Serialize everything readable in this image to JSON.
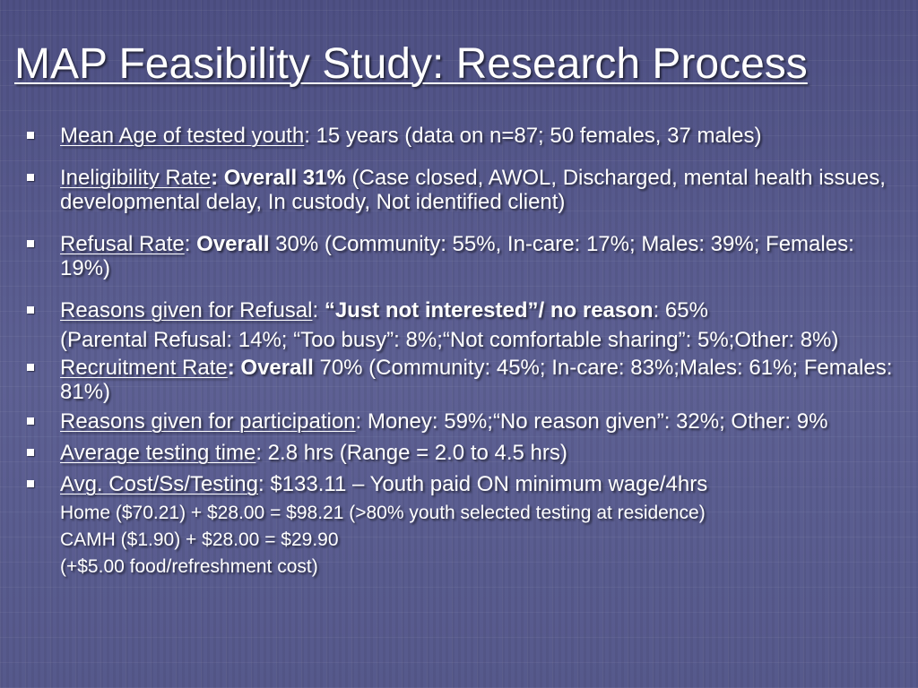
{
  "title": "MAP Feasibility Study: Research Process",
  "items": [
    {
      "label": "Mean Age of tested youth",
      "text": ": 15 years (data on n=87; 50 females, 37 males)"
    },
    {
      "label": "Ineligibility Rate",
      "bold": ": Overall 31%",
      "text": " (Case closed, AWOL, Discharged, mental health issues, developmental delay, In custody, Not identified client)"
    },
    {
      "label": "Refusal Rate",
      "sep": ": ",
      "bold": "Overall",
      "text": " 30% (Community: 55%, In-care: 17%; Males: 39%; Females: 19%)"
    },
    {
      "label": "Reasons given for Refusal",
      "sep": ": ",
      "bold": "“Just not interested”/ no reason",
      "text": ": 65%",
      "sub": "(Parental Refusal: 14%; “Too busy”: 8%;“Not comfortable sharing”: 5%;Other: 8%)"
    },
    {
      "label": "Recruitment Rate",
      "bold": ":  Overall",
      "text": " 70% (Community: 45%; In-care: 83%;Males: 61%; Females: 81%)"
    },
    {
      "label": "Reasons given for participation",
      "text": ":  Money: 59%;“No reason given”: 32%; Other: 9%"
    },
    {
      "label": "Average testing time",
      "text": ": 2.8 hrs (Range = 2.0 to 4.5 hrs)"
    },
    {
      "label": "Avg. Cost/Ss/Testing",
      "text": ": $133.11 – Youth paid ON minimum wage/4hrs"
    }
  ],
  "cost_lines": [
    "Home ($70.21) + $28.00 = $98.21 (>80% youth selected testing at residence)",
    "CAMH ($1.90) + $28.00 =  $29.90",
    "(+$5.00 food/refreshment cost)"
  ],
  "colors": {
    "background": "#5a5c8e",
    "text": "#ffffff"
  },
  "icons": {
    "bullet": "square-bullet-icon"
  }
}
